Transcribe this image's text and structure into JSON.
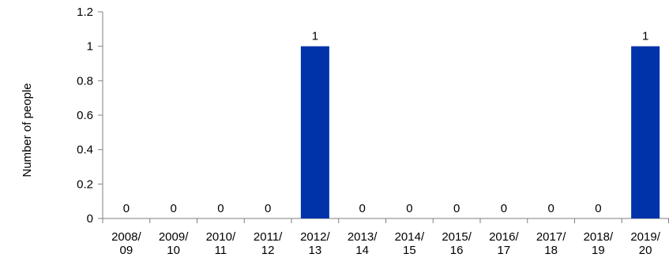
{
  "chart_data": {
    "type": "bar",
    "categories": [
      [
        "2008/",
        "09"
      ],
      [
        "2009/",
        "10"
      ],
      [
        "2010/",
        "11"
      ],
      [
        "2011/",
        "12"
      ],
      [
        "2012/",
        "13"
      ],
      [
        "2013/",
        "14"
      ],
      [
        "2014/",
        "15"
      ],
      [
        "2015/",
        "16"
      ],
      [
        "2016/",
        "17"
      ],
      [
        "2017/",
        "18"
      ],
      [
        "2018/",
        "19"
      ],
      [
        "2019/",
        "20"
      ]
    ],
    "values": [
      0,
      0,
      0,
      0,
      1,
      0,
      0,
      0,
      0,
      0,
      0,
      1
    ],
    "data_labels": [
      "0",
      "0",
      "0",
      "0",
      "1",
      "0",
      "0",
      "0",
      "0",
      "0",
      "0",
      "1"
    ],
    "ylabel": "Number of people",
    "xlabel": "",
    "ylim": [
      0,
      1.2
    ],
    "yticks": [
      "0",
      "0.2",
      "0.4",
      "0.6",
      "0.8",
      "1",
      "1.2"
    ],
    "bar_color": "#0033a9",
    "grid": false,
    "legend": "none"
  }
}
